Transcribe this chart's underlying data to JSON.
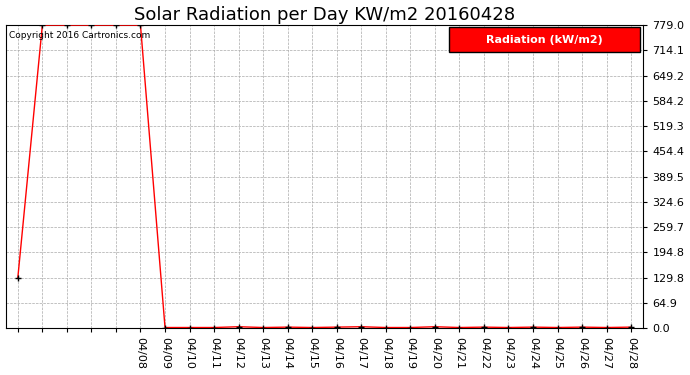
{
  "title": "Solar Radiation per Day KW/m2 20160428",
  "copyright_text": "Copyright 2016 Cartronics.com",
  "legend_label": "Radiation (kW/m2)",
  "background_color": "#ffffff",
  "plot_bg_color": "#ffffff",
  "line_color": "#ff0000",
  "marker_color": "#000000",
  "grid_color": "#aaaaaa",
  "grid_style": "--",
  "ylim": [
    0.0,
    779.0
  ],
  "yticks": [
    0.0,
    64.9,
    129.8,
    194.8,
    259.7,
    324.6,
    389.5,
    454.4,
    519.3,
    584.2,
    649.2,
    714.1,
    779.0
  ],
  "n_early": 5,
  "early_y": [
    129.8,
    779.0,
    779.0,
    779.0,
    779.0
  ],
  "labeled_x": [
    "04/08",
    "04/09",
    "04/10",
    "04/11",
    "04/12",
    "04/13",
    "04/14",
    "04/15",
    "04/16",
    "04/17",
    "04/18",
    "04/19",
    "04/20",
    "04/21",
    "04/22",
    "04/23",
    "04/24",
    "04/25",
    "04/26",
    "04/27",
    "04/28"
  ],
  "labeled_y": [
    779.0,
    2.0,
    2.0,
    2.0,
    4.0,
    2.0,
    3.0,
    2.0,
    3.0,
    4.0,
    2.0,
    2.0,
    4.0,
    2.0,
    3.0,
    2.0,
    3.0,
    2.0,
    3.0,
    2.0,
    3.0
  ],
  "title_fontsize": 13,
  "tick_fontsize": 8,
  "legend_fontsize": 8,
  "legend_box_color": "#ff0000",
  "legend_text_color": "#ffffff",
  "legend_edge_color": "#000000"
}
